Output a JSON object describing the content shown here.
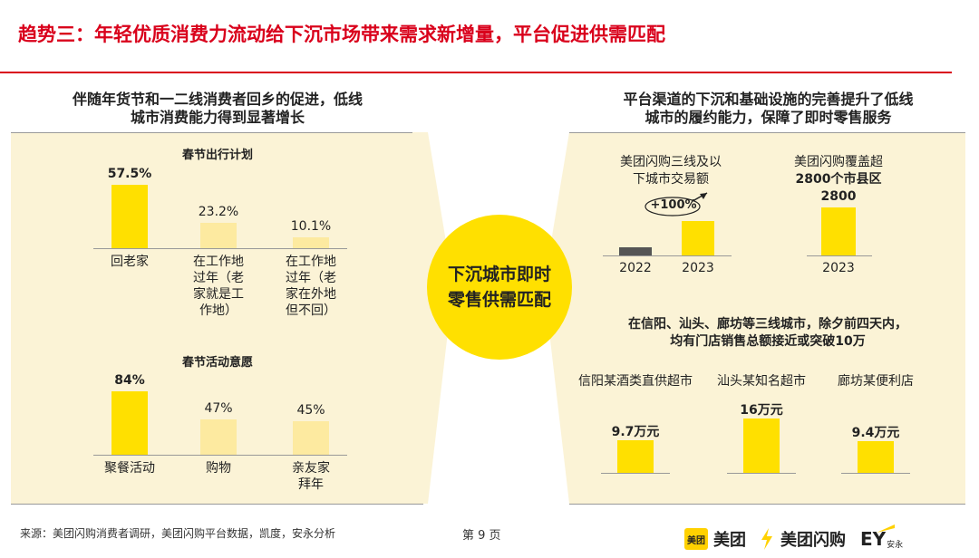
{
  "title": "趋势三：年轻优质消费力流动给下沉市场带来需求新增量，平台促进供需匹配",
  "left": {
    "heading_line1": "伴随年货节和一二线消费者回乡的促进，低线",
    "heading_line2": "城市消费能力得到显著增长",
    "chart1": {
      "title": "春节出行计划",
      "bars": [
        {
          "value": "57.5%",
          "label": [
            "回老家"
          ]
        },
        {
          "value": "23.2%",
          "label": [
            "在工作地",
            "过年（老",
            "家就是工",
            "作地）"
          ]
        },
        {
          "value": "10.1%",
          "label": [
            "在工作地",
            "过年（老",
            "家在外地",
            "但不回）"
          ]
        }
      ]
    },
    "chart2": {
      "title": "春节活动意愿",
      "bars": [
        {
          "value": "84%",
          "label": [
            "聚餐活动"
          ]
        },
        {
          "value": "47%",
          "label": [
            "购物"
          ]
        },
        {
          "value": "45%",
          "label": [
            "亲友家",
            "拜年"
          ]
        }
      ]
    }
  },
  "center": {
    "line1": "下沉城市即时",
    "line2": "零售供需匹配"
  },
  "right": {
    "heading_line1": "平台渠道的下沉和基础设施的完善提升了低线",
    "heading_line2": "城市的履约能力，保障了即时零售服务",
    "chart_a": {
      "title_line1": "美团闪购三线及以",
      "title_line2": "下城市交易额",
      "growth": "+100%",
      "years": [
        "2022",
        "2023"
      ]
    },
    "chart_b": {
      "title_line1": "美团闪购覆盖超",
      "title_line2": "2800个市县区",
      "value": "2800",
      "year": "2023"
    },
    "stores_heading_line1": "在信阳、汕头、廊坊等三线城市，除夕前四天内，",
    "stores_heading_line2": "均有门店销售总额接近或突破10万",
    "stores": [
      {
        "name": "信阳某酒类直供超市",
        "value": "9.7万元"
      },
      {
        "name": "汕头某知名超市",
        "value": "16万元"
      },
      {
        "name": "廊坊某便利店",
        "value": "9.4万元"
      }
    ]
  },
  "chart_data": [
    {
      "type": "bar",
      "title": "春节出行计划",
      "categories": [
        "回老家",
        "在工作地过年（老家就是工作地）",
        "在工作地过年（老家在外地但不回）"
      ],
      "values": [
        57.5,
        23.2,
        10.1
      ]
    },
    {
      "type": "bar",
      "title": "春节活动意愿",
      "categories": [
        "聚餐活动",
        "购物",
        "亲友家拜年"
      ],
      "values": [
        84,
        47,
        45
      ]
    },
    {
      "type": "bar",
      "title": "美团闪购三线及以下城市交易额",
      "categories": [
        "2022",
        "2023"
      ],
      "values": [
        1,
        2
      ],
      "annotation": "+100%"
    },
    {
      "type": "bar",
      "title": "美团闪购覆盖超2800个市县区",
      "categories": [
        "2023"
      ],
      "values": [
        2800
      ]
    },
    {
      "type": "bar",
      "categories": [
        "信阳某酒类直供超市",
        "汕头某知名超市",
        "廊坊某便利店"
      ],
      "values": [
        9.7,
        16,
        9.4
      ],
      "unit": "万元"
    }
  ],
  "footer": {
    "source": "来源：美团闪购消费者调研，美团闪购平台数据，凯度，安永分析",
    "page": "第 9 页"
  },
  "logos": {
    "meituan_badge": "美团",
    "meituan": "美团",
    "shangou": "美团闪购",
    "ey": "EY",
    "ey_cn": "安永"
  },
  "colors": {
    "accent": "#d9001b",
    "bar": "#ffe000",
    "bar_light": "#fdeaa0",
    "panel": "#fbf3d6"
  }
}
